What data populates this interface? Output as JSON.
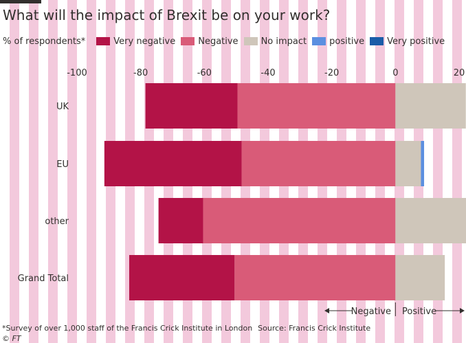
{
  "header": {
    "title": "What will the impact of Brexit be on your work?"
  },
  "legend": {
    "ylabel": "% of respondents*",
    "items": [
      {
        "label": "Very negative",
        "color": "#b31347"
      },
      {
        "label": "Negative",
        "color": "#d95b78"
      },
      {
        "label": "No impact",
        "color": "#cfc6ba"
      },
      {
        "label": "positive",
        "color": "#5b8fe0"
      },
      {
        "label": "Very positive",
        "color": "#1a5ca8"
      }
    ]
  },
  "chart_data": {
    "type": "bar",
    "orientation": "horizontal",
    "stacked": "diverging",
    "categories": [
      "UK",
      "EU",
      "other",
      "Grand Total"
    ],
    "series": [
      {
        "name": "Very negative",
        "color": "#b31347",
        "values": [
          -28.9,
          -43.1,
          -14.0,
          -33.1
        ]
      },
      {
        "name": "Negative",
        "color": "#d95b78",
        "values": [
          -49.6,
          -48.3,
          -60.4,
          -50.5
        ]
      },
      {
        "name": "No impact",
        "color": "#cfc6ba",
        "values": [
          22.1,
          8.0,
          25.0,
          15.5
        ]
      },
      {
        "name": "positive",
        "color": "#5b8fe0",
        "values": [
          0.0,
          1.0,
          0.0,
          0.0
        ]
      },
      {
        "name": "Very positive",
        "color": "#1a5ca8",
        "values": [
          0.0,
          0.0,
          1.0,
          0.0
        ]
      }
    ],
    "neutral_series": "No impact",
    "xlim": [
      -100,
      20
    ],
    "xticks": [
      -100,
      -80,
      -60,
      -40,
      -20,
      0,
      20
    ],
    "xtick_labels": [
      "-100",
      "-80",
      "-60",
      "-40",
      "-20",
      "0",
      "20"
    ],
    "xaxis_position": "top",
    "grid": false,
    "direction_labels": {
      "negative": "Negative",
      "positive": "Positive"
    }
  },
  "footer": {
    "note": "*Survey of over 1,000 staff of the Francis Crick Institute in London",
    "source": "Source: Francis Crick Institute",
    "credit": "© FT"
  }
}
